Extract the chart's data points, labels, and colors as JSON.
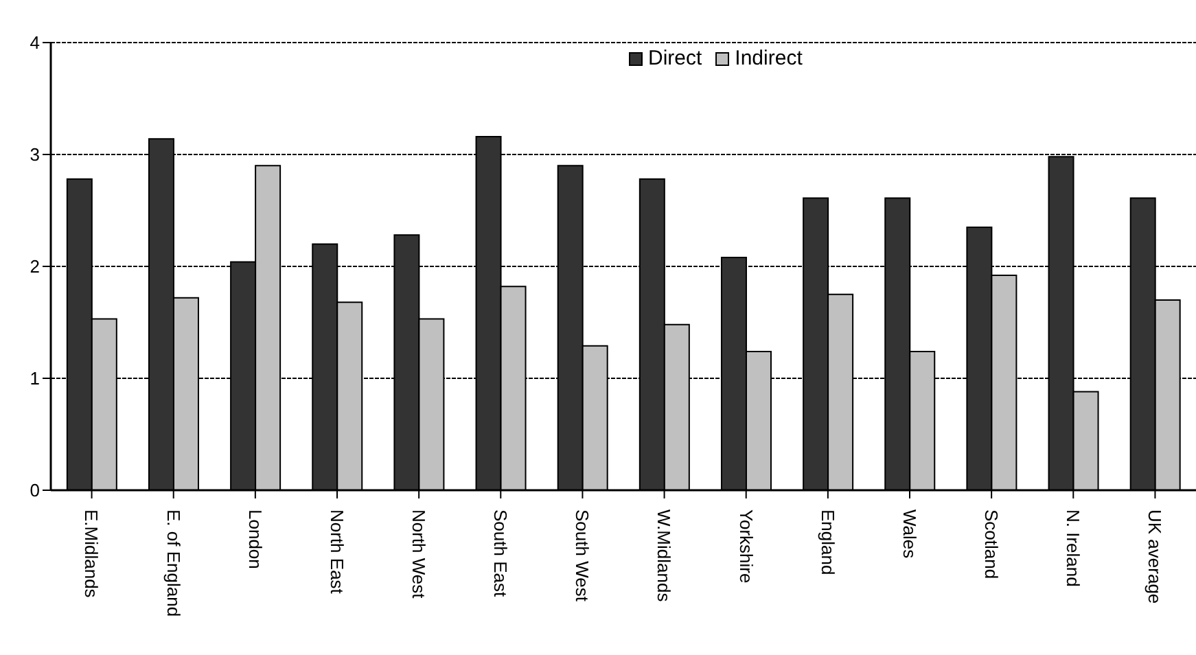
{
  "chart_data": {
    "type": "bar",
    "categories": [
      "E.Midlands",
      "E. of England",
      "London",
      "North East",
      "North West",
      "South East",
      "South West",
      "W.Midlands",
      "Yorkshire",
      "England",
      "Wales",
      "Scotland",
      "N. Ireland",
      "UK average"
    ],
    "series": [
      {
        "name": "Direct",
        "color": "#333333",
        "values": [
          2.78,
          3.14,
          2.04,
          2.2,
          2.28,
          3.16,
          2.9,
          2.78,
          2.08,
          2.61,
          2.61,
          2.35,
          2.98,
          2.61
        ]
      },
      {
        "name": "Indirect",
        "color": "#c0c0c0",
        "values": [
          1.53,
          1.72,
          2.9,
          1.68,
          1.53,
          1.82,
          1.29,
          1.48,
          1.24,
          1.75,
          1.24,
          1.92,
          0.88,
          1.7
        ]
      }
    ],
    "ylim": [
      0,
      4
    ],
    "yticks": [
      0,
      1,
      2,
      3,
      4
    ],
    "grid": "y",
    "legend": "top",
    "line_style": "dashed"
  }
}
